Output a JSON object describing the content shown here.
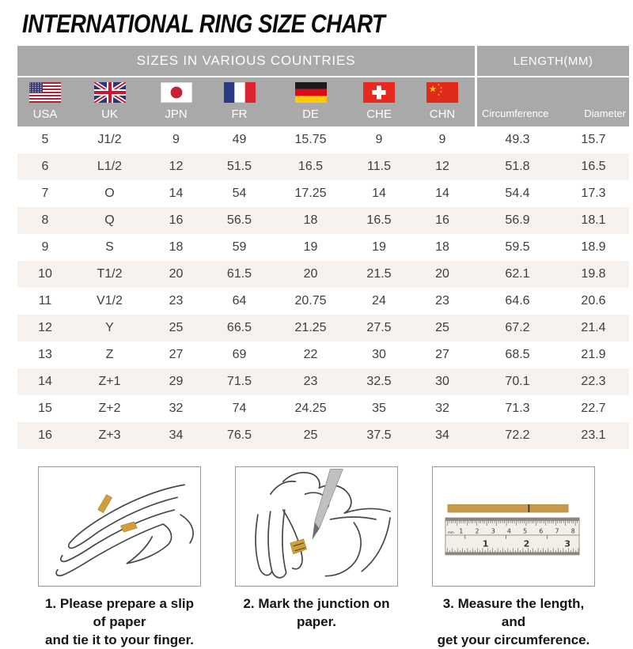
{
  "page_title": "INTERNATIONAL RING SIZE CHART",
  "chart_data": {
    "type": "table",
    "title": "INTERNATIONAL RING SIZE CHART",
    "section_headers": {
      "left": "SIZES IN VARIOUS COUNTRIES",
      "right": "LENGTH(MM)"
    },
    "columns": [
      "USA",
      "UK",
      "JPN",
      "FR",
      "DE",
      "CHE",
      "CHN",
      "Circumference",
      "Diameter"
    ],
    "rows": [
      [
        "5",
        "J1/2",
        "9",
        "49",
        "15.75",
        "9",
        "9",
        "49.3",
        "15.7"
      ],
      [
        "6",
        "L1/2",
        "12",
        "51.5",
        "16.5",
        "11.5",
        "12",
        "51.8",
        "16.5"
      ],
      [
        "7",
        "O",
        "14",
        "54",
        "17.25",
        "14",
        "14",
        "54.4",
        "17.3"
      ],
      [
        "8",
        "Q",
        "16",
        "56.5",
        "18",
        "16.5",
        "16",
        "56.9",
        "18.1"
      ],
      [
        "9",
        "S",
        "18",
        "59",
        "19",
        "19",
        "18",
        "59.5",
        "18.9"
      ],
      [
        "10",
        "T1/2",
        "20",
        "61.5",
        "20",
        "21.5",
        "20",
        "62.1",
        "19.8"
      ],
      [
        "11",
        "V1/2",
        "23",
        "64",
        "20.75",
        "24",
        "23",
        "64.6",
        "20.6"
      ],
      [
        "12",
        "Y",
        "25",
        "66.5",
        "21.25",
        "27.5",
        "25",
        "67.2",
        "21.4"
      ],
      [
        "13",
        "Z",
        "27",
        "69",
        "22",
        "30",
        "27",
        "68.5",
        "21.9"
      ],
      [
        "14",
        "Z+1",
        "29",
        "71.5",
        "23",
        "32.5",
        "30",
        "70.1",
        "22.3"
      ],
      [
        "15",
        "Z+2",
        "32",
        "74",
        "24.25",
        "35",
        "32",
        "71.3",
        "22.7"
      ],
      [
        "16",
        "Z+3",
        "34",
        "76.5",
        "25",
        "37.5",
        "34",
        "72.2",
        "23.1"
      ]
    ]
  },
  "countries": [
    {
      "label": "USA",
      "flag": "usa-flag"
    },
    {
      "label": "UK",
      "flag": "uk-flag"
    },
    {
      "label": "JPN",
      "flag": "japan-flag"
    },
    {
      "label": "FR",
      "flag": "france-flag"
    },
    {
      "label": "DE",
      "flag": "germany-flag"
    },
    {
      "label": "CHE",
      "flag": "switzerland-flag"
    },
    {
      "label": "CHN",
      "flag": "china-flag"
    }
  ],
  "length_columns": [
    "Circumference",
    "Diameter"
  ],
  "instructions": [
    {
      "lines": [
        "1. Please prepare a slip of paper",
        "and tie it to your finger."
      ]
    },
    {
      "lines": [
        "2. Mark the junction on paper."
      ]
    },
    {
      "lines": [
        "3. Measure the length, and",
        "get your circumference."
      ],
      "ruler": {
        "unit_label": "mm",
        "cm_numbers": [
          "1",
          "2",
          "3",
          "4",
          "5",
          "6",
          "7",
          "8"
        ],
        "inch_numbers": [
          "1",
          "2",
          "3"
        ]
      }
    }
  ],
  "colors": {
    "header_gray": "#a9a9a9",
    "alt_row_pink": "#f8f2ef",
    "body_text": "#3e3e3e",
    "paper_strip_gold": "#c59b4b",
    "illustration_gold": "#cf9f3d"
  }
}
